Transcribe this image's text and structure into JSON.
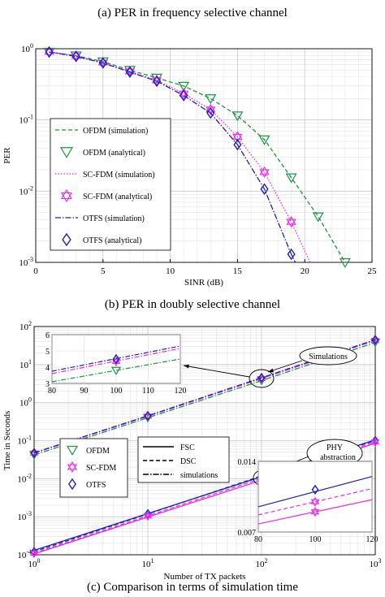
{
  "captions": {
    "top": "(a) PER in frequency selective channel",
    "middle": "(b) PER in doubly selective channel",
    "bottom": "(c) Comparison in terms of simulation time"
  },
  "colors": {
    "ofdm": "#1a9641",
    "scfdm": "#e82be8",
    "otfs": "#1f1fbf",
    "phy_ofdm": "#1f1fbf",
    "black": "#000000"
  },
  "chart_data": [
    {
      "type": "line",
      "xlabel": "SINR (dB)",
      "ylabel": "PER",
      "xlim": [
        0,
        25
      ],
      "ylim": [
        0.001,
        1
      ],
      "yscale": "log",
      "grid": true,
      "legend_position": "left",
      "x_ticks": [
        "0",
        "5",
        "10",
        "15",
        "20",
        "25"
      ],
      "y_ticks": [
        "10^0",
        "10^-1",
        "10^-2",
        "10^-3"
      ],
      "series": [
        {
          "name": "OFDM (simulation)",
          "style": "dashed",
          "color": "#1a9641",
          "x": [
            1,
            3,
            5,
            7,
            9,
            11,
            13,
            15,
            17,
            19,
            21,
            23
          ],
          "y": [
            0.9,
            0.8,
            0.66,
            0.5,
            0.39,
            0.3,
            0.2,
            0.115,
            0.053,
            0.0155,
            0.0044,
            0.001
          ]
        },
        {
          "name": "OFDM (analytical)",
          "marker": "triangle-down",
          "color": "#1a9641",
          "x": [
            1,
            3,
            5,
            7,
            9,
            11,
            13,
            15,
            17,
            19,
            21,
            23
          ],
          "y": [
            0.9,
            0.8,
            0.66,
            0.5,
            0.39,
            0.3,
            0.2,
            0.115,
            0.053,
            0.0155,
            0.0044,
            0.001
          ]
        },
        {
          "name": "SC-FDM (simulation)",
          "style": "dotted",
          "color": "#e82be8",
          "x": [
            1,
            3,
            5,
            7,
            9,
            11,
            13,
            15,
            17,
            19,
            20.4
          ],
          "y": [
            0.9,
            0.79,
            0.64,
            0.48,
            0.36,
            0.235,
            0.14,
            0.058,
            0.0185,
            0.0037,
            0.001
          ]
        },
        {
          "name": "SC-FDM (analytical)",
          "marker": "hexagram",
          "color": "#e82be8",
          "x": [
            1,
            3,
            5,
            7,
            9,
            11,
            13,
            15,
            17,
            19
          ],
          "y": [
            0.9,
            0.79,
            0.64,
            0.48,
            0.36,
            0.235,
            0.14,
            0.058,
            0.0185,
            0.0037
          ]
        },
        {
          "name": "OTFS (simulation)",
          "style": "dashdot",
          "color": "#1f1fbf",
          "x": [
            1,
            3,
            5,
            7,
            9,
            11,
            13,
            15,
            17,
            19,
            19.3
          ],
          "y": [
            0.9,
            0.78,
            0.63,
            0.47,
            0.35,
            0.22,
            0.125,
            0.045,
            0.0107,
            0.0013,
            0.001
          ]
        },
        {
          "name": "OTFS (analytical)",
          "marker": "diamond",
          "color": "#1f1fbf",
          "x": [
            1,
            3,
            5,
            7,
            9,
            11,
            13,
            15,
            17,
            19
          ],
          "y": [
            0.9,
            0.78,
            0.63,
            0.47,
            0.35,
            0.22,
            0.125,
            0.045,
            0.0107,
            0.0013
          ]
        }
      ]
    },
    {
      "type": "line",
      "xlabel": "Number of TX packets",
      "ylabel": "Time in Seconds",
      "xlim": [
        1,
        1000
      ],
      "ylim": [
        0.0001,
        100
      ],
      "xscale": "log",
      "yscale": "log",
      "grid": true,
      "x_ticks": [
        "10^0",
        "10^1",
        "10^2",
        "10^3"
      ],
      "y_ticks": [
        "10^-4",
        "10^-3",
        "10^-2",
        "10^-1",
        "10^0",
        "10^1",
        "10^2"
      ],
      "annotations": [
        "Simulations",
        "PHY abstraction"
      ],
      "legend": {
        "markers": [
          "OFDM",
          "SC-FDM",
          "OTFS"
        ],
        "lines": [
          "FSC",
          "DSC",
          "simulations"
        ]
      },
      "series": [
        {
          "group": "simulations",
          "name": "OFDM",
          "color": "#1a9641",
          "style": "dashdot",
          "marker": "triangle-down",
          "x": [
            1,
            10,
            100,
            1000
          ],
          "y": [
            0.042,
            0.4,
            3.8,
            38
          ]
        },
        {
          "group": "simulations",
          "name": "SC-FDM",
          "color": "#e82be8",
          "style": "dashdot",
          "marker": "hexagram",
          "x": [
            1,
            10,
            100,
            1000
          ],
          "y": [
            0.047,
            0.44,
            4.3,
            43
          ]
        },
        {
          "group": "simulations",
          "name": "OTFS",
          "color": "#1f1fbf",
          "style": "dashdot",
          "marker": "diamond",
          "x": [
            1,
            10,
            100,
            1000
          ],
          "y": [
            0.048,
            0.45,
            4.5,
            45
          ]
        },
        {
          "group": "phy",
          "name": "OFDM",
          "line": "FSC",
          "color": "#1f1fbf",
          "style": "solid",
          "x": [
            1,
            1000
          ],
          "y": [
            0.00013,
            0.105
          ]
        },
        {
          "group": "phy",
          "name": "OTFS",
          "line": "DSC",
          "color": "#1f1fbf",
          "style": "dashed",
          "marker": "diamond",
          "x": [
            1,
            10,
            100,
            1000
          ],
          "y": [
            0.00012,
            0.00118,
            0.0118,
            0.1
          ]
        },
        {
          "group": "phy",
          "name": "SC-FDM",
          "line": "FSC",
          "color": "#e82be8",
          "style": "solid",
          "x": [
            1,
            1000
          ],
          "y": [
            0.000105,
            0.085
          ]
        },
        {
          "group": "phy",
          "name": "SC-FDM",
          "line": "DSC",
          "color": "#e82be8",
          "style": "dashed",
          "marker": "hexagram",
          "x": [
            1,
            10,
            100,
            1000
          ],
          "y": [
            0.00011,
            0.00105,
            0.0102,
            0.092
          ]
        }
      ],
      "insets": [
        {
          "name": "simulations-zoom",
          "xlim": [
            80,
            120
          ],
          "ylim": [
            3,
            6
          ],
          "x_ticks": [
            "80",
            "90",
            "100",
            "110",
            "120"
          ],
          "y_ticks": [
            "3",
            "4",
            "5",
            "6"
          ],
          "series": [
            {
              "name": "OFDM",
              "color": "#1a9641",
              "x": [
                80,
                120
              ],
              "y": [
                3.1,
                4.5
              ],
              "marker_at": [
                100,
                3.8
              ]
            },
            {
              "name": "SC-FDM",
              "color": "#e82be8",
              "x": [
                80,
                120
              ],
              "y": [
                3.6,
                5.15
              ],
              "marker_at": [
                100,
                4.35
              ]
            },
            {
              "name": "OTFS",
              "color": "#1f1fbf",
              "x": [
                80,
                120
              ],
              "y": [
                3.75,
                5.3
              ],
              "marker_at": [
                100,
                4.5
              ]
            }
          ]
        },
        {
          "name": "phy-zoom",
          "xlim": [
            80,
            120
          ],
          "ylim": [
            0.007,
            0.014
          ],
          "x_ticks": [
            "80",
            "100",
            "120"
          ],
          "y_ticks": [
            "0.007",
            "0.014"
          ],
          "series": [
            {
              "name": "OFDM",
              "color": "#1f1fbf",
              "x": [
                80,
                120
              ],
              "y": [
                0.0095,
                0.0125
              ],
              "marker_at": [
                100,
                0.0112
              ]
            },
            {
              "name": "SC-FDM DSC",
              "color": "#e82be8",
              "x": [
                80,
                120
              ],
              "y": [
                0.0087,
                0.0113
              ],
              "marker_at": [
                100,
                0.01
              ]
            },
            {
              "name": "SC-FDM FSC",
              "color": "#e82be8",
              "x": [
                80,
                120
              ],
              "y": [
                0.0078,
                0.0102
              ],
              "marker_at": [
                100,
                0.009
              ]
            }
          ]
        }
      ]
    }
  ]
}
